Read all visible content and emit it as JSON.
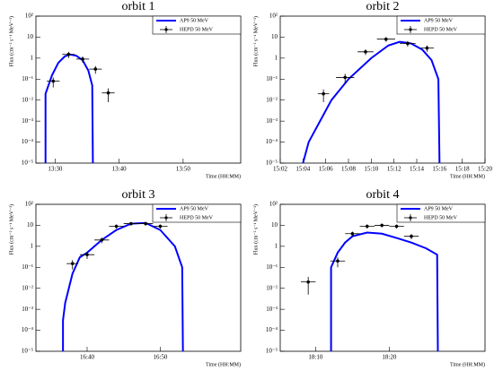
{
  "chart_data": [
    {
      "type": "line",
      "title": "orbit 1",
      "xlabel": "Time (HH:MM)",
      "ylabel": "Flux (cm⁻² s⁻¹ MeV⁻¹)",
      "log": true,
      "legend": "upper right",
      "xlim": [
        807,
        839
      ],
      "xticks": [
        {
          "value": 810,
          "label": "13:30"
        },
        {
          "value": 820,
          "label": "13:40"
        },
        {
          "value": 830,
          "label": "13:50"
        }
      ],
      "ylim": [
        1e-05,
        100
      ],
      "yticks": [
        {
          "value": 1e-05,
          "label": "10⁻⁵"
        },
        {
          "value": 0.0001,
          "label": "10⁻⁴"
        },
        {
          "value": 0.001,
          "label": "10⁻³"
        },
        {
          "value": 0.01,
          "label": "10⁻²"
        },
        {
          "value": 0.1,
          "label": "10⁻¹"
        },
        1,
        10,
        {
          "value": 100,
          "label": "10²"
        }
      ],
      "series": [
        {
          "name": "AP9 50 MeV",
          "type": "line",
          "color": "#0000ff",
          "x": [
            808.5,
            808.5,
            809.5,
            810.5,
            811.5,
            812.3,
            813.3,
            814.3,
            815.2,
            815.8,
            815.9
          ],
          "values": [
            1e-05,
            0.02,
            0.15,
            0.6,
            1.2,
            1.5,
            1.3,
            0.8,
            0.25,
            0.05,
            1e-05
          ]
        },
        {
          "name": "HEPD 50 MeV",
          "type": "scatter",
          "color": "#000000",
          "x": [
            809.7,
            812.1,
            814.3,
            816.3,
            818.3
          ],
          "xerr": [
            1,
            1,
            1,
            1,
            1
          ],
          "values": [
            0.08,
            1.5,
            0.9,
            0.3,
            0.022
          ],
          "yerr": [
            0.04,
            0.5,
            0.3,
            0.12,
            0.014
          ]
        }
      ]
    },
    {
      "type": "line",
      "title": "orbit 2",
      "xlabel": "Time (HH:MM)",
      "ylabel": "Flux (cm⁻² s⁻¹ MeV⁻¹)",
      "log": true,
      "legend": "upper right",
      "xlim": [
        902,
        920
      ],
      "xticks": [
        {
          "value": 902,
          "label": "15:02"
        },
        {
          "value": 904,
          "label": "15:04"
        },
        {
          "value": 906,
          "label": "15:06"
        },
        {
          "value": 908,
          "label": "15:08"
        },
        {
          "value": 910,
          "label": "15:10"
        },
        {
          "value": 912,
          "label": "15:12"
        },
        {
          "value": 914,
          "label": "15:14"
        },
        {
          "value": 916,
          "label": "15:16"
        },
        {
          "value": 918,
          "label": "15:18"
        },
        {
          "value": 920,
          "label": "15:20"
        }
      ],
      "ylim": [
        1e-05,
        100
      ],
      "yticks": [
        {
          "value": 1e-05,
          "label": "10⁻⁵"
        },
        {
          "value": 0.0001,
          "label": "10⁻⁴"
        },
        {
          "value": 0.001,
          "label": "10⁻³"
        },
        {
          "value": 0.01,
          "label": "10⁻²"
        },
        {
          "value": 0.1,
          "label": "10⁻¹"
        },
        1,
        10,
        {
          "value": 100,
          "label": "10²"
        }
      ],
      "series": [
        {
          "name": "AP9 50 MeV",
          "type": "line",
          "color": "#0000ff",
          "x": [
            904,
            904.5,
            905.5,
            906.5,
            908,
            910,
            911.5,
            912.5,
            913.5,
            914.5,
            915.3,
            915.9,
            916
          ],
          "values": [
            1e-05,
            0.0001,
            0.001,
            0.01,
            0.1,
            1,
            4,
            6,
            5,
            2.5,
            0.8,
            0.1,
            1e-05
          ]
        },
        {
          "name": "HEPD 50 MeV",
          "type": "scatter",
          "color": "#000000",
          "x": [
            905.8,
            907.7,
            909.5,
            911.3,
            913.2,
            914.9
          ],
          "xerr": [
            0.5,
            0.8,
            0.7,
            0.8,
            0.7,
            0.6
          ],
          "values": [
            0.02,
            0.12,
            2,
            8,
            5,
            3
          ],
          "yerr": [
            0.012,
            0.06,
            0.6,
            2,
            1.5,
            1
          ]
        }
      ]
    },
    {
      "type": "line",
      "title": "orbit 3",
      "xlabel": "Time (HH:MM)",
      "ylabel": "Flux (cm⁻² s⁻¹ MeV⁻¹)",
      "log": true,
      "legend": "upper right",
      "xlim": [
        993,
        1021
      ],
      "xticks": [
        {
          "value": 1000,
          "label": "16:40"
        },
        {
          "value": 1010,
          "label": "16:50"
        }
      ],
      "ylim": [
        1e-05,
        100
      ],
      "yticks": [
        {
          "value": 1e-05,
          "label": "10⁻⁵"
        },
        {
          "value": 0.0001,
          "label": "10⁻⁴"
        },
        {
          "value": 0.001,
          "label": "10⁻³"
        },
        {
          "value": 0.01,
          "label": "10⁻²"
        },
        {
          "value": 0.1,
          "label": "10⁻¹"
        },
        1,
        10,
        {
          "value": 100,
          "label": "10²"
        }
      ],
      "series": [
        {
          "name": "AP9 50 MeV",
          "type": "line",
          "color": "#0000ff",
          "x": [
            996.7,
            996.7,
            997,
            998,
            999,
            1000,
            1002,
            1004,
            1006,
            1008,
            1010,
            1012,
            1013,
            1013.1
          ],
          "values": [
            1e-05,
            0.0003,
            0.002,
            0.05,
            0.3,
            0.5,
            2,
            6,
            12,
            13,
            6,
            1,
            0.1,
            1e-05
          ]
        },
        {
          "name": "HEPD 50 MeV",
          "type": "scatter",
          "color": "#000000",
          "x": [
            998,
            1000,
            1002,
            1004,
            1006,
            1008,
            1010
          ],
          "xerr": [
            0.8,
            1,
            1,
            1,
            1,
            1,
            1
          ],
          "values": [
            0.15,
            0.4,
            2,
            9,
            12,
            12,
            9
          ],
          "yerr": [
            0.07,
            0.15,
            0.6,
            2,
            2,
            2,
            2
          ]
        }
      ]
    },
    {
      "type": "line",
      "title": "orbit 4",
      "xlabel": "Time (HH:MM)",
      "ylabel": "Flux (cm⁻² s⁻¹ MeV⁻¹)",
      "log": true,
      "legend": "upper right",
      "xlim": [
        1085.2,
        1113
      ],
      "xticks": [
        {
          "value": 1090,
          "label": "18:10"
        },
        {
          "value": 1100,
          "label": "18:20"
        }
      ],
      "ylim": [
        1e-05,
        100
      ],
      "yticks": [
        {
          "value": 1e-05,
          "label": "10⁻⁵"
        },
        {
          "value": 0.0001,
          "label": "10⁻⁴"
        },
        {
          "value": 0.001,
          "label": "10⁻³"
        },
        {
          "value": 0.01,
          "label": "10⁻²"
        },
        {
          "value": 0.1,
          "label": "10⁻¹"
        },
        1,
        10,
        {
          "value": 100,
          "label": "10²"
        }
      ],
      "series": [
        {
          "name": "AP9 50 MeV",
          "type": "line",
          "color": "#0000ff",
          "x": [
            1092.1,
            1092.1,
            1093,
            1094,
            1095,
            1097,
            1099,
            1101,
            1103,
            1105,
            1106.5,
            1106.6
          ],
          "values": [
            1e-05,
            0.1,
            0.5,
            1.5,
            3,
            4.5,
            4,
            2.5,
            1.5,
            0.8,
            0.4,
            1e-05
          ]
        },
        {
          "name": "HEPD 50 MeV",
          "type": "scatter",
          "color": "#000000",
          "x": [
            1089,
            1093,
            1095,
            1097,
            1099,
            1101,
            1103
          ],
          "xerr": [
            1,
            1,
            1,
            1,
            1,
            1,
            1
          ],
          "values": [
            0.02,
            0.2,
            4,
            9,
            10,
            9,
            3
          ],
          "yerr": [
            0.015,
            0.1,
            1,
            2,
            2,
            2,
            0.8
          ]
        }
      ]
    }
  ]
}
